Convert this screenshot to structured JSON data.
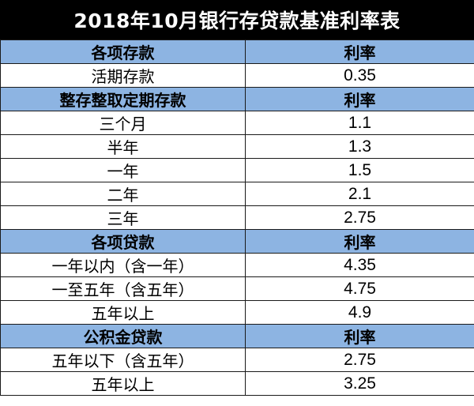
{
  "title": "2018年10月银行存贷款基准利率表",
  "sections": [
    {
      "header": {
        "name": "各项存款",
        "rate": "利率"
      },
      "rows": [
        {
          "name": "活期存款",
          "rate": "0.35"
        }
      ]
    },
    {
      "header": {
        "name": "整存整取定期存款",
        "rate": "利率"
      },
      "rows": [
        {
          "name": "三个月",
          "rate": "1.1"
        },
        {
          "name": "半年",
          "rate": "1.3"
        },
        {
          "name": "一年",
          "rate": "1.5"
        },
        {
          "name": "二年",
          "rate": "2.1"
        },
        {
          "name": "三年",
          "rate": "2.75"
        }
      ]
    },
    {
      "header": {
        "name": "各项贷款",
        "rate": "利率"
      },
      "rows": [
        {
          "name": "一年以内（含一年）",
          "rate": "4.35"
        },
        {
          "name": "一至五年（含五年）",
          "rate": "4.75"
        },
        {
          "name": "五年以上",
          "rate": "4.9"
        }
      ]
    },
    {
      "header": {
        "name": "公积金贷款",
        "rate": "利率"
      },
      "rows": [
        {
          "name": "五年以下（含五年）",
          "rate": "2.75"
        },
        {
          "name": "五年以上",
          "rate": "3.25"
        }
      ]
    }
  ],
  "colors": {
    "title_bg": "#000000",
    "title_text": "#ffffff",
    "header_bg": "#8db4e2",
    "border": "#1a1a1a"
  }
}
